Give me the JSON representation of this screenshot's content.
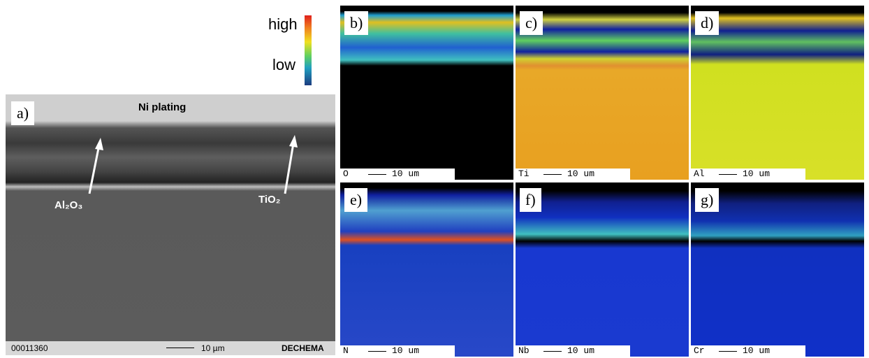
{
  "colorbar": {
    "high": "high",
    "low": "low"
  },
  "sem": {
    "label": "a)",
    "top_label": "Ni plating",
    "arrow_left": "Al₂O₃",
    "arrow_right": "TiO₂",
    "footer": {
      "id": "00011360",
      "scale": "10 µm",
      "logo": "DECHEMA"
    }
  },
  "maps": [
    {
      "label": "b)",
      "element": "O",
      "scale": "10 um"
    },
    {
      "label": "c)",
      "element": "Ti",
      "scale": "10 um"
    },
    {
      "label": "d)",
      "element": "Al",
      "scale": "10 um"
    },
    {
      "label": "e)",
      "element": "N",
      "scale": "10 um"
    },
    {
      "label": "f)",
      "element": "Nb",
      "scale": "10 um"
    },
    {
      "label": "g)",
      "element": "Cr",
      "scale": "10 um"
    }
  ]
}
